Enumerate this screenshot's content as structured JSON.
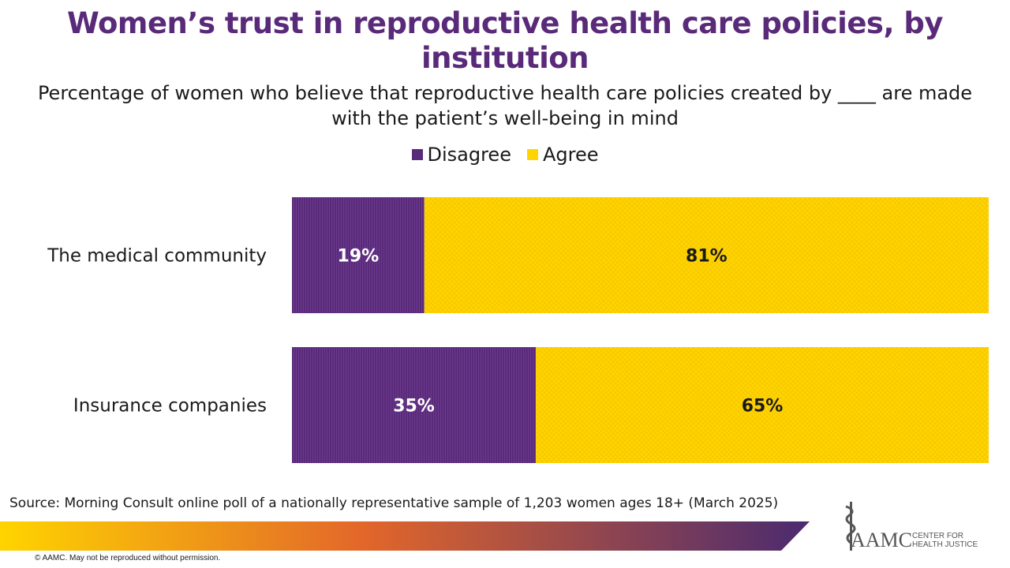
{
  "title": "Women’s trust in reproductive health care policies, by institution",
  "subtitle": "Percentage of women who believe that reproductive health care policies created by ____ are made with the patient’s well-being in mind",
  "colors": {
    "disagree": "#5a2a7a",
    "agree": "#ffd400",
    "title": "#5a2a7a"
  },
  "chart_data": {
    "type": "bar",
    "orientation": "horizontal",
    "stacked": true,
    "percent_stacked": true,
    "categories": [
      "The medical community",
      "Insurance companies"
    ],
    "series": [
      {
        "name": "Disagree",
        "values": [
          19,
          35
        ],
        "labels": [
          "19%",
          "35%"
        ]
      },
      {
        "name": "Agree",
        "values": [
          81,
          65
        ],
        "labels": [
          "81%",
          "65%"
        ]
      }
    ],
    "xlim": [
      0,
      100
    ],
    "legend_position": "top",
    "grid": false
  },
  "source": "Source: Morning Consult online poll of a nationally representative sample of 1,203 women ages 18+ (March 2025)",
  "copyright": "© AAMC. May not be reproduced without permission.",
  "logo": {
    "name": "AAMC",
    "sub_line1": "CENTER FOR",
    "sub_line2": "HEALTH JUSTICE",
    "icon": "caduceus-icon"
  }
}
